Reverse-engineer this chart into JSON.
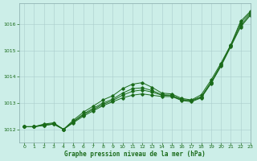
{
  "xlabel": "Graphe pression niveau de la mer (hPa)",
  "bg_color": "#cceee8",
  "grid_color": "#aacccc",
  "line_color": "#1a6b1a",
  "ylim": [
    1011.5,
    1016.8
  ],
  "xlim": [
    -0.5,
    23
  ],
  "yticks": [
    1012,
    1013,
    1014,
    1015,
    1016
  ],
  "xticks": [
    0,
    1,
    2,
    3,
    4,
    5,
    6,
    7,
    8,
    9,
    10,
    11,
    12,
    13,
    14,
    15,
    16,
    17,
    18,
    19,
    20,
    21,
    22,
    23
  ],
  "series": [
    [
      1012.1,
      1012.1,
      1012.15,
      1012.2,
      1012.0,
      1012.25,
      1012.5,
      1012.7,
      1012.9,
      1013.05,
      1013.2,
      1013.3,
      1013.35,
      1013.3,
      1013.25,
      1013.25,
      1013.1,
      1013.05,
      1013.2,
      1013.75,
      1014.4,
      1015.15,
      1015.9,
      1016.35
    ],
    [
      1012.1,
      1012.1,
      1012.15,
      1012.2,
      1012.0,
      1012.28,
      1012.55,
      1012.75,
      1012.95,
      1013.1,
      1013.3,
      1013.45,
      1013.5,
      1013.42,
      1013.3,
      1013.28,
      1013.12,
      1013.08,
      1013.22,
      1013.78,
      1014.44,
      1015.18,
      1015.95,
      1016.4
    ],
    [
      1012.1,
      1012.1,
      1012.18,
      1012.22,
      1012.0,
      1012.3,
      1012.58,
      1012.8,
      1013.0,
      1013.15,
      1013.38,
      1013.55,
      1013.58,
      1013.48,
      1013.32,
      1013.3,
      1013.14,
      1013.1,
      1013.25,
      1013.8,
      1014.46,
      1015.2,
      1016.05,
      1016.45
    ],
    [
      1012.1,
      1012.1,
      1012.2,
      1012.25,
      1012.0,
      1012.35,
      1012.65,
      1012.88,
      1013.12,
      1013.28,
      1013.55,
      1013.72,
      1013.78,
      1013.6,
      1013.38,
      1013.35,
      1013.18,
      1013.12,
      1013.32,
      1013.88,
      1014.52,
      1015.22,
      1016.12,
      1016.5
    ]
  ]
}
